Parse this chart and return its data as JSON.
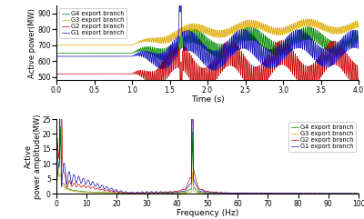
{
  "top": {
    "xlabel": "Time (s)",
    "ylabel": "Active power(MW)",
    "xlim": [
      0,
      4
    ],
    "ylim": [
      480,
      950
    ],
    "yticks": [
      500,
      600,
      700,
      800,
      900
    ],
    "xticks": [
      0,
      0.5,
      1.0,
      1.5,
      2.0,
      2.5,
      3.0,
      3.5,
      4.0
    ]
  },
  "bottom": {
    "xlabel": "Frequency (Hz)",
    "ylabel": "Active\npower amplitude(MW)",
    "xlim": [
      0,
      100
    ],
    "ylim": [
      0,
      25
    ],
    "yticks": [
      0,
      5,
      10,
      15,
      20,
      25
    ],
    "xticks": [
      0,
      10,
      20,
      30,
      40,
      50,
      60,
      70,
      80,
      90,
      100
    ]
  },
  "colors": {
    "G4": "#008800",
    "G3": "#ddaa00",
    "G2": "#cc0000",
    "G1": "#1111bb"
  },
  "labels": {
    "G4": "G4 export branch",
    "G3": "G3 export branch",
    "G2": "G2 export branch",
    "G1": "G1 export branch"
  },
  "bg_color": "#ffffff",
  "signals": {
    "G4": {
      "base_pre": 650,
      "base_post": 730,
      "sso_amp": 45,
      "slow_amp": 55,
      "slow_freq": 1.3
    },
    "G3": {
      "base_pre": 700,
      "base_post": 820,
      "sso_amp": 25,
      "slow_amp": 30,
      "slow_freq": 1.3
    },
    "G2": {
      "base_pre": 520,
      "base_post": 575,
      "sso_amp": 85,
      "slow_amp": 90,
      "slow_freq": 1.45
    },
    "G1": {
      "base_pre": 630,
      "base_post": 680,
      "sso_amp": 65,
      "slow_amp": 70,
      "slow_freq": 1.35
    }
  },
  "t_disturb": 1.0,
  "t_spike": 1.62,
  "sso_freq": 45.0,
  "fs": 2000
}
